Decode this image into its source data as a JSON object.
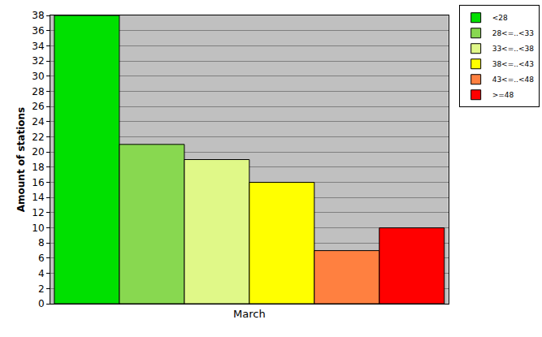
{
  "chart_data": {
    "type": "bar",
    "ylabel": "Amount of stations",
    "categories": [
      "March"
    ],
    "series": [
      {
        "name": "<28",
        "color": "#00e000",
        "values": [
          38
        ]
      },
      {
        "name": "28<=..<33",
        "color": "#88d850",
        "values": [
          21
        ]
      },
      {
        "name": "33<=..<38",
        "color": "#e0f888",
        "values": [
          19
        ]
      },
      {
        "name": "38<=..<43",
        "color": "#ffff00",
        "values": [
          16
        ]
      },
      {
        "name": "43<=..<48",
        "color": "#ff8040",
        "values": [
          7
        ]
      },
      {
        "name": ">=48",
        "color": "#ff0000",
        "values": [
          10
        ]
      }
    ],
    "ylim": [
      0,
      38
    ],
    "yticks": [
      0,
      2,
      4,
      6,
      8,
      10,
      12,
      14,
      16,
      18,
      20,
      22,
      24,
      26,
      28,
      30,
      32,
      34,
      36,
      38
    ],
    "grid": true,
    "legend": "top-right"
  }
}
